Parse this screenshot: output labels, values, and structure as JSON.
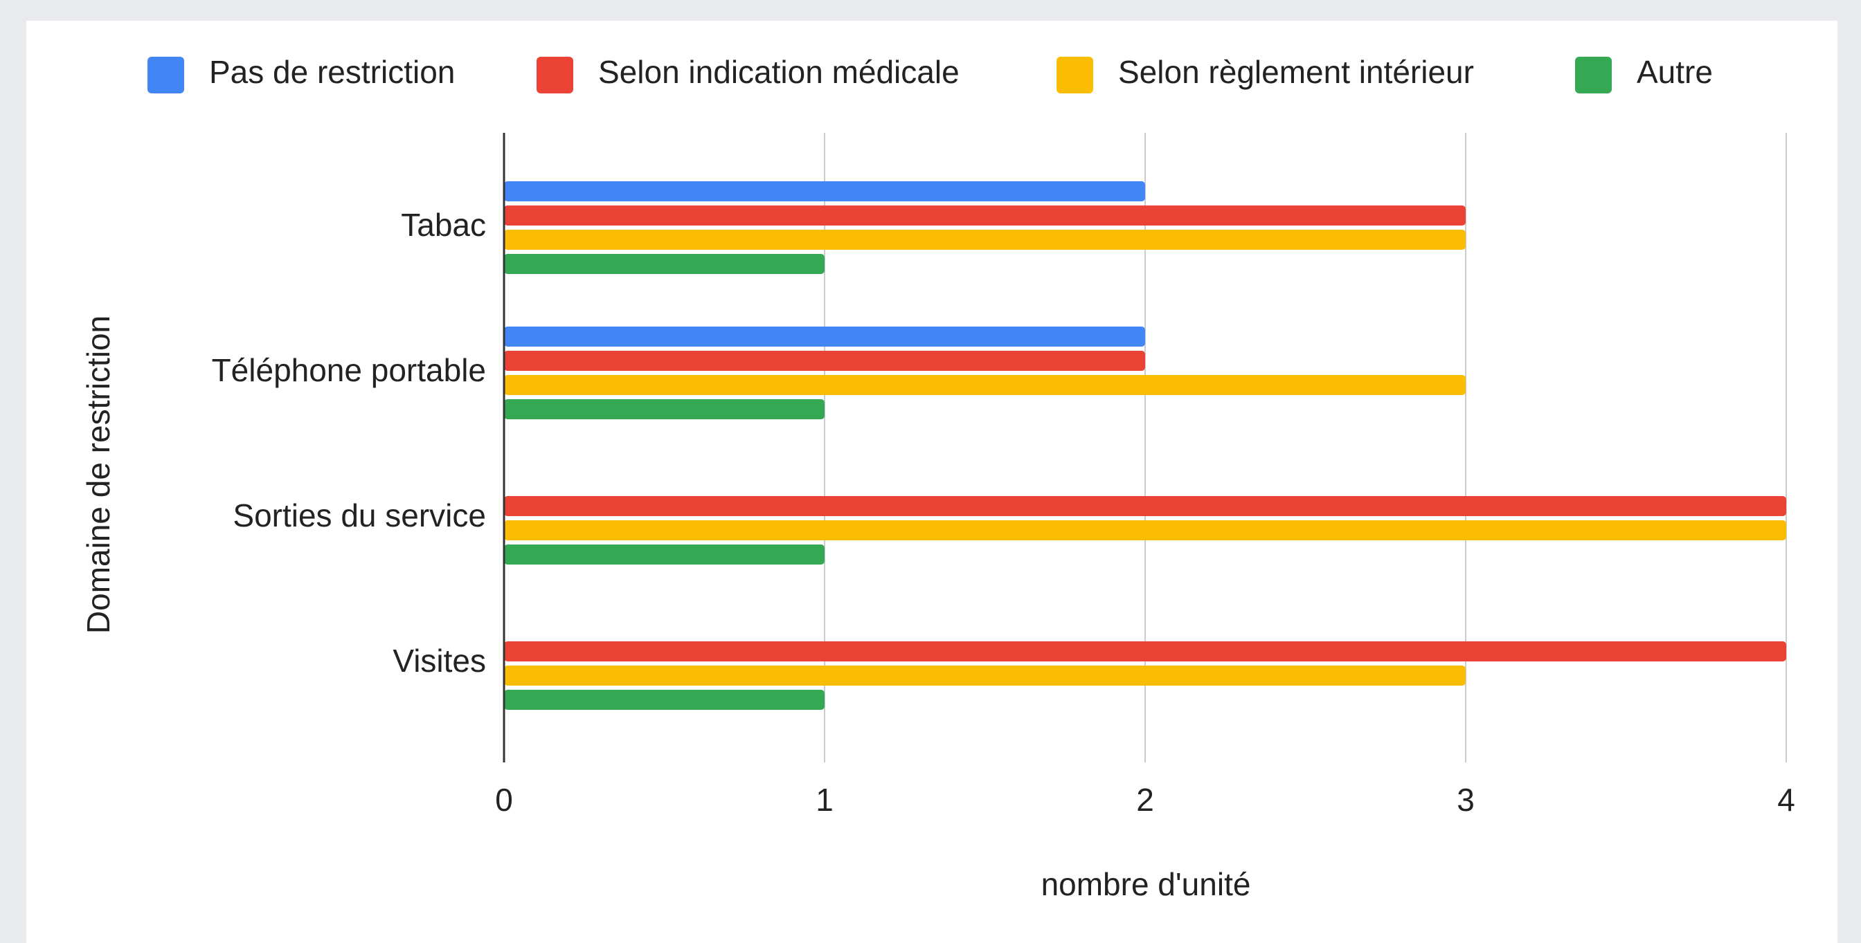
{
  "chart_data": {
    "type": "hbar",
    "categories": [
      "Tabac",
      "Téléphone portable",
      "Sorties du service",
      "Visites"
    ],
    "series": [
      {
        "name": "Pas de restriction",
        "color": "#4285f4",
        "values": [
          2,
          2,
          0,
          0
        ]
      },
      {
        "name": "Selon indication médicale",
        "color": "#ea4335",
        "values": [
          3,
          2,
          4,
          4
        ]
      },
      {
        "name": "Selon règlement intérieur",
        "color": "#fbbc04",
        "values": [
          3,
          3,
          4,
          3
        ]
      },
      {
        "name": "Autre",
        "color": "#34a853",
        "values": [
          1,
          1,
          1,
          1
        ]
      }
    ],
    "xlabel": "nombre d'unité",
    "ylabel": "Domaine de restriction",
    "xlim": [
      0,
      4
    ],
    "xticks": [
      0,
      1,
      2,
      3,
      4
    ],
    "grid": true,
    "legend": "top"
  }
}
